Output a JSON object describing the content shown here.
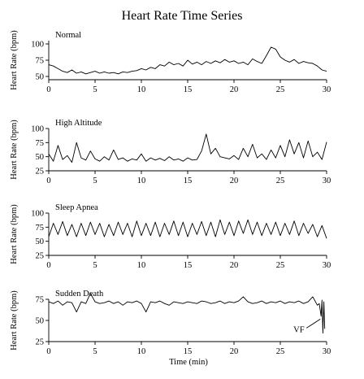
{
  "title": "Heart Rate Time Series",
  "xlabel": "Time (min)",
  "chart_data": [
    {
      "type": "line",
      "title": "Normal",
      "ylabel": "Heart Rate (bpm)",
      "xlim": [
        0,
        30
      ],
      "ylim": [
        45,
        105
      ],
      "xticks": [
        0,
        5,
        10,
        15,
        20,
        25,
        30
      ],
      "yticks": [
        50,
        75,
        100
      ],
      "annotations": [],
      "series": [
        {
          "x": [
            0,
            0.5,
            1,
            1.5,
            2,
            2.5,
            3,
            3.5,
            4,
            4.5,
            5,
            5.5,
            6,
            6.5,
            7,
            7.5,
            8,
            8.5,
            9,
            9.5,
            10,
            10.5,
            11,
            11.5,
            12,
            12.5,
            13,
            13.5,
            14,
            14.5,
            15,
            15.5,
            16,
            16.5,
            17,
            17.5,
            18,
            18.5,
            19,
            19.5,
            20,
            20.5,
            21,
            21.5,
            22,
            22.5,
            23,
            23.5,
            24,
            24.5,
            25,
            25.5,
            26,
            26.5,
            27,
            27.5,
            28,
            28.5,
            29,
            29.5,
            30
          ],
          "y": [
            68,
            66,
            62,
            58,
            56,
            60,
            55,
            57,
            54,
            56,
            58,
            55,
            57,
            55,
            56,
            54,
            57,
            56,
            58,
            59,
            62,
            60,
            64,
            62,
            68,
            66,
            72,
            68,
            70,
            66,
            75,
            69,
            72,
            68,
            73,
            70,
            74,
            71,
            76,
            72,
            74,
            70,
            72,
            68,
            77,
            73,
            70,
            82,
            95,
            92,
            80,
            75,
            72,
            76,
            70,
            73,
            71,
            70,
            66,
            60,
            58
          ]
        }
      ]
    },
    {
      "type": "line",
      "title": "High Altitude",
      "ylabel": "Heart Rate (bpm)",
      "xlim": [
        0,
        30
      ],
      "ylim": [
        25,
        100
      ],
      "xticks": [
        0,
        5,
        10,
        15,
        20,
        25,
        30
      ],
      "yticks": [
        25,
        50,
        75,
        100
      ],
      "annotations": [],
      "series": [
        {
          "x": [
            0,
            0.5,
            1,
            1.5,
            2,
            2.5,
            3,
            3.5,
            4,
            4.5,
            5,
            5.5,
            6,
            6.5,
            7,
            7.5,
            8,
            8.5,
            9,
            9.5,
            10,
            10.5,
            11,
            11.5,
            12,
            12.5,
            13,
            13.5,
            14,
            14.5,
            15,
            15.5,
            16,
            16.5,
            17,
            17.5,
            18,
            18.5,
            19,
            19.5,
            20,
            20.5,
            21,
            21.5,
            22,
            22.5,
            23,
            23.5,
            24,
            24.5,
            25,
            25.5,
            26,
            26.5,
            27,
            27.5,
            28,
            28.5,
            29,
            29.5,
            30
          ],
          "y": [
            55,
            42,
            70,
            45,
            52,
            40,
            75,
            48,
            44,
            60,
            46,
            42,
            50,
            44,
            62,
            45,
            48,
            42,
            46,
            44,
            55,
            42,
            48,
            44,
            47,
            43,
            50,
            44,
            46,
            42,
            48,
            44,
            45,
            60,
            90,
            55,
            65,
            50,
            48,
            46,
            52,
            45,
            65,
            50,
            72,
            48,
            55,
            45,
            62,
            48,
            70,
            50,
            80,
            55,
            75,
            48,
            78,
            50,
            58,
            45,
            76
          ]
        }
      ]
    },
    {
      "type": "line",
      "title": "Sleep Apnea",
      "ylabel": "Heart Rate (bpm)",
      "xlim": [
        0,
        30
      ],
      "ylim": [
        25,
        100
      ],
      "xticks": [
        0,
        5,
        10,
        15,
        20,
        25,
        30
      ],
      "yticks": [
        25,
        50,
        75,
        100
      ],
      "annotations": [],
      "series": [
        {
          "x": [
            0,
            0.5,
            1,
            1.5,
            2,
            2.5,
            3,
            3.5,
            4,
            4.5,
            5,
            5.5,
            6,
            6.5,
            7,
            7.5,
            8,
            8.5,
            9,
            9.5,
            10,
            10.5,
            11,
            11.5,
            12,
            12.5,
            13,
            13.5,
            14,
            14.5,
            15,
            15.5,
            16,
            16.5,
            17,
            17.5,
            18,
            18.5,
            19,
            19.5,
            20,
            20.5,
            21,
            21.5,
            22,
            22.5,
            23,
            23.5,
            24,
            24.5,
            25,
            25.5,
            26,
            26.5,
            27,
            27.5,
            28,
            28.5,
            29,
            29.5,
            30
          ],
          "y": [
            58,
            82,
            62,
            85,
            60,
            80,
            58,
            82,
            60,
            84,
            62,
            82,
            58,
            80,
            60,
            84,
            62,
            82,
            58,
            86,
            60,
            82,
            60,
            84,
            58,
            82,
            62,
            86,
            60,
            84,
            58,
            82,
            62,
            85,
            60,
            84,
            58,
            88,
            62,
            84,
            60,
            86,
            64,
            88,
            62,
            84,
            60,
            82,
            62,
            84,
            60,
            82,
            62,
            86,
            60,
            82,
            64,
            80,
            58,
            78,
            55
          ]
        }
      ]
    },
    {
      "type": "line",
      "title": "Sudden Death",
      "ylabel": "Heart Rate (bpm)",
      "xlim": [
        0,
        30
      ],
      "ylim": [
        25,
        75
      ],
      "xticks": [
        0,
        5,
        10,
        15,
        20,
        25,
        30
      ],
      "yticks": [
        25,
        50,
        75
      ],
      "annotations": [
        {
          "text": "VF",
          "x": 29.4,
          "y": 40
        }
      ],
      "series": [
        {
          "x": [
            0,
            0.5,
            1,
            1.5,
            2,
            2.5,
            3,
            3.5,
            4,
            4.5,
            5,
            5.5,
            6,
            6.5,
            7,
            7.5,
            8,
            8.5,
            9,
            9.5,
            10,
            10.5,
            11,
            11.5,
            12,
            12.5,
            13,
            13.5,
            14,
            14.5,
            15,
            15.5,
            16,
            16.5,
            17,
            17.5,
            18,
            18.5,
            19,
            19.5,
            20,
            20.5,
            21,
            21.5,
            22,
            22.5,
            23,
            23.5,
            24,
            24.5,
            25,
            25.5,
            26,
            26.5,
            27,
            27.5,
            28,
            28.5,
            29,
            29.2,
            29.4,
            29.5,
            29.6,
            29.7,
            29.8
          ],
          "y": [
            72,
            70,
            73,
            68,
            72,
            71,
            60,
            72,
            70,
            82,
            72,
            70,
            71,
            73,
            70,
            72,
            68,
            72,
            71,
            73,
            70,
            60,
            72,
            71,
            73,
            70,
            68,
            72,
            71,
            70,
            72,
            71,
            70,
            73,
            72,
            70,
            71,
            73,
            70,
            72,
            71,
            73,
            78,
            72,
            70,
            71,
            73,
            70,
            72,
            71,
            73,
            70,
            72,
            71,
            73,
            70,
            72,
            78,
            68,
            70,
            55,
            74,
            35,
            72,
            40
          ]
        }
      ]
    }
  ]
}
